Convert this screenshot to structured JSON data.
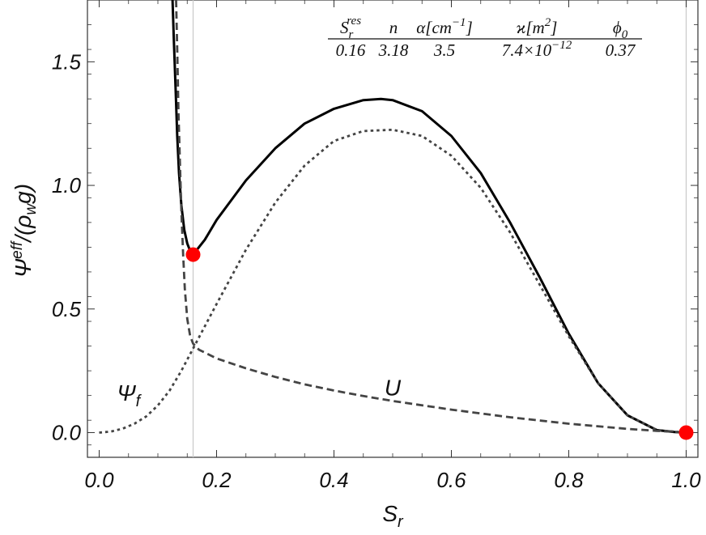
{
  "chart_data": {
    "type": "line",
    "xlabel": {
      "main": "S",
      "sub": "r"
    },
    "ylabel": {
      "main": "Ψ",
      "sup": "eff",
      "tail": "/(ρ",
      "sub": "w",
      "end": "g)"
    },
    "xlim": [
      -0.02,
      1.02
    ],
    "ylim": [
      -0.1,
      1.75
    ],
    "x_ticks": [
      0.0,
      0.2,
      0.4,
      0.6,
      0.8,
      1.0
    ],
    "x_tick_labels": [
      "0.0",
      "0.2",
      "0.4",
      "0.6",
      "0.8",
      "1.0"
    ],
    "y_ticks": [
      0.0,
      0.5,
      1.0,
      1.5
    ],
    "y_tick_labels": [
      "0.0",
      "0.5",
      "1.0",
      "1.5"
    ],
    "grid": false,
    "reference_lines_x": [
      0.16,
      1.0
    ],
    "parameters": {
      "headers": [
        {
          "main": "S",
          "sub": "r",
          "sup": "res"
        },
        {
          "main": "n"
        },
        {
          "main": "α[cm",
          "sup": "−1",
          "end": "]"
        },
        {
          "main": "ϰ[m",
          "sup": "2",
          "end": "]"
        },
        {
          "main": "ϕ",
          "sub": "0"
        }
      ],
      "values": [
        {
          "main": "0.16"
        },
        {
          "main": "3.18"
        },
        {
          "main": "3.5"
        },
        {
          "main": "7.4×10",
          "sup": "−12"
        },
        {
          "main": "0.37"
        }
      ]
    },
    "series": [
      {
        "style": "solid",
        "color": "#000000",
        "x": [
          0.125,
          0.127,
          0.13,
          0.133,
          0.136,
          0.14,
          0.145,
          0.15,
          0.155,
          0.16,
          0.18,
          0.2,
          0.25,
          0.3,
          0.35,
          0.4,
          0.45,
          0.48,
          0.5,
          0.55,
          0.6,
          0.65,
          0.7,
          0.75,
          0.8,
          0.85,
          0.9,
          0.95,
          0.98,
          1.0
        ],
        "y": [
          1.75,
          1.6,
          1.4,
          1.2,
          1.05,
          0.92,
          0.82,
          0.765,
          0.735,
          0.72,
          0.78,
          0.86,
          1.02,
          1.15,
          1.25,
          1.31,
          1.345,
          1.35,
          1.345,
          1.3,
          1.2,
          1.05,
          0.85,
          0.63,
          0.4,
          0.2,
          0.07,
          0.01,
          0.002,
          0.0
        ]
      },
      {
        "style": "dashed",
        "color": "#444444",
        "x": [
          0.131,
          0.133,
          0.135,
          0.138,
          0.14,
          0.143,
          0.146,
          0.15,
          0.155,
          0.16,
          0.17,
          0.2,
          0.25,
          0.3,
          0.35,
          0.4,
          0.45,
          0.5,
          0.6,
          0.7,
          0.8,
          0.9,
          0.95,
          1.0
        ],
        "y": [
          1.75,
          1.55,
          1.3,
          1.05,
          0.9,
          0.72,
          0.58,
          0.46,
          0.39,
          0.36,
          0.335,
          0.3,
          0.26,
          0.225,
          0.195,
          0.17,
          0.148,
          0.128,
          0.093,
          0.062,
          0.036,
          0.015,
          0.007,
          0.0
        ]
      },
      {
        "style": "dotted",
        "color": "#444444",
        "x": [
          0.0,
          0.02,
          0.04,
          0.06,
          0.08,
          0.1,
          0.12,
          0.14,
          0.16,
          0.18,
          0.2,
          0.25,
          0.3,
          0.35,
          0.4,
          0.45,
          0.5,
          0.55,
          0.6,
          0.65,
          0.7,
          0.75,
          0.8,
          0.85,
          0.9,
          0.95,
          1.0
        ],
        "y": [
          0.0,
          0.004,
          0.016,
          0.036,
          0.065,
          0.11,
          0.17,
          0.25,
          0.34,
          0.43,
          0.52,
          0.74,
          0.93,
          1.08,
          1.18,
          1.22,
          1.225,
          1.2,
          1.12,
          0.99,
          0.81,
          0.6,
          0.39,
          0.2,
          0.07,
          0.01,
          0.0
        ]
      }
    ],
    "markers": [
      {
        "x": 0.16,
        "y": 0.72,
        "color": "#ff0000"
      },
      {
        "x": 1.0,
        "y": 0.0,
        "color": "#ff0000"
      }
    ],
    "annotations": [
      {
        "main": "Ψ",
        "sub": "f",
        "x": 0.05,
        "y": 0.13
      },
      {
        "main": "U",
        "x": 0.5,
        "y": 0.15
      }
    ]
  }
}
